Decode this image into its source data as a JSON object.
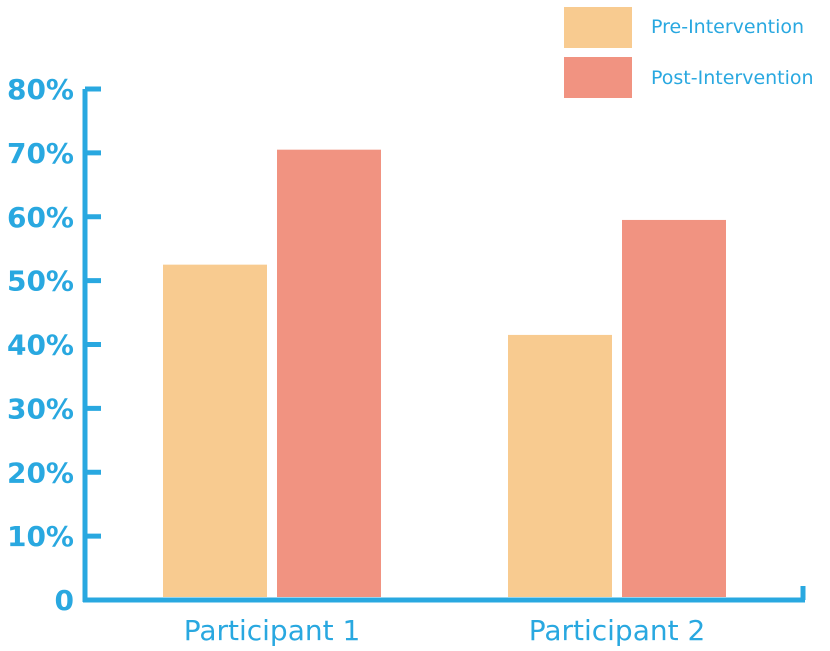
{
  "chart_data": {
    "type": "bar",
    "categories": [
      "Participant 1",
      "Participant 2"
    ],
    "series": [
      {
        "name": "Pre-Intervention",
        "values": [
          52.5,
          41.5
        ],
        "color": "#F8CB90"
      },
      {
        "name": "Post-Intervention",
        "values": [
          70.5,
          59.5
        ],
        "color": "#F19381"
      }
    ],
    "yticks": [
      "0",
      "10%",
      "20%",
      "30%",
      "40%",
      "50%",
      "60%",
      "70%",
      "80%"
    ],
    "ylim": [
      0,
      80
    ],
    "grid": false,
    "legend_position": "top-right",
    "axis_color": "#29A8E0"
  }
}
